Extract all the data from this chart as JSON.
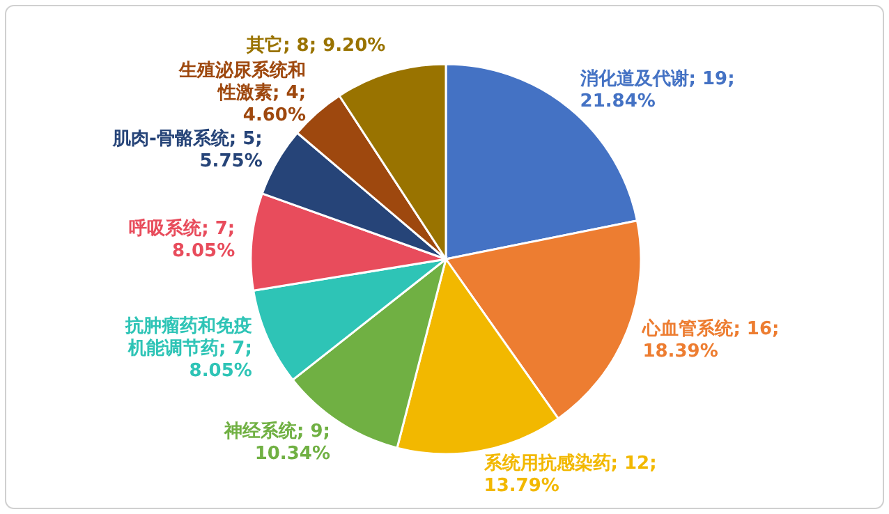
{
  "chart_data": {
    "type": "pie",
    "categories": [
      "消化道及代谢",
      "心血管系统",
      "系统用抗感染药",
      "神经系统",
      "抗肿瘤药和免疫机能调节药",
      "呼吸系统",
      "肌肉-骨骼系统",
      "生殖泌尿系统和性激素",
      "其它"
    ],
    "values": [
      19,
      16,
      12,
      9,
      7,
      7,
      5,
      4,
      8
    ],
    "value_labels": [
      "19; 21.84%",
      "16; 18.39%",
      "12; 13.79%",
      "9; 10.34%",
      "7; 8.05%",
      "7; 8.05%",
      "5; 5.75%",
      "4; 4.60%",
      "8; 9.20%"
    ],
    "colors": [
      "#4472c4",
      "#ed7d31",
      "#f2b800",
      "#70b043",
      "#2ec4b6",
      "#e84c5c",
      "#264478",
      "#9e480e",
      "#997300"
    ],
    "legend": false
  }
}
